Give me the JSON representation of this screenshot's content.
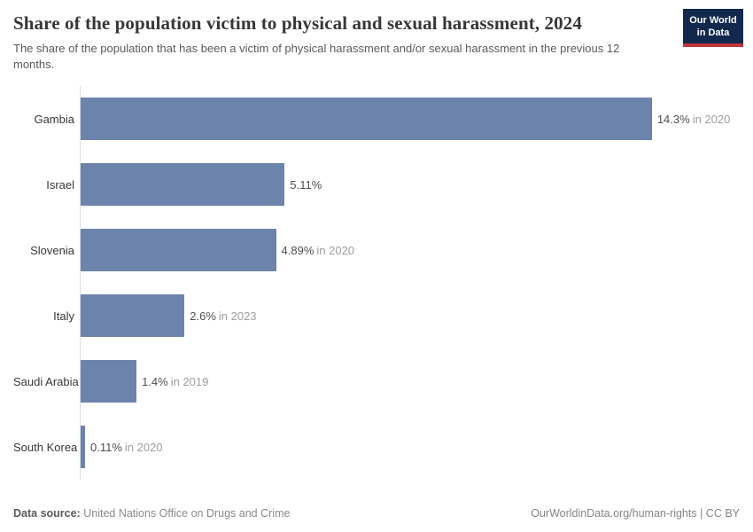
{
  "header": {
    "title": "Share of the population victim to physical and sexual harassment, 2024",
    "subtitle": "The share of the population that has been a victim of physical harassment and/or sexual harassment in the previous 12 months.",
    "logo": {
      "line1": "Our World",
      "line2": "in Data"
    }
  },
  "chart_data": {
    "type": "bar",
    "orientation": "horizontal",
    "title": "Share of the population victim to physical and sexual harassment, 2024",
    "subtitle": "The share of the population that has been a victim of physical harassment and/or sexual harassment in the previous 12 months.",
    "categories": [
      "Gambia",
      "Israel",
      "Slovenia",
      "Italy",
      "Saudi Arabia",
      "South Korea"
    ],
    "values": [
      14.3,
      5.11,
      4.89,
      2.6,
      1.4,
      0.11
    ],
    "value_labels": [
      "14.3%",
      "5.11%",
      "4.89%",
      "2.6%",
      "1.4%",
      "0.11%"
    ],
    "year_notes": [
      "in 2020",
      "",
      "in 2020",
      "in 2023",
      "in 2019",
      "in 2020"
    ],
    "xlabel": "",
    "ylabel": "",
    "xlim": [
      0,
      16.5
    ],
    "grid": "off",
    "legend": "none",
    "bar_color": "#6c84ab"
  },
  "footer": {
    "source_label": "Data source:",
    "source_value": "United Nations Office on Drugs and Crime",
    "credit": "OurWorldinData.org/human-rights | CC BY"
  },
  "colors": {
    "bar": "#6c84ab",
    "axis_line": "#dcdfe3",
    "logo_navy": "#12294d",
    "logo_red": "#c0343c",
    "title_text": "#383636",
    "subtitle_text": "#5b5b5b",
    "category_text": "#383838",
    "value_text": "#4f4f4f",
    "year_text": "#9e9e9e"
  }
}
